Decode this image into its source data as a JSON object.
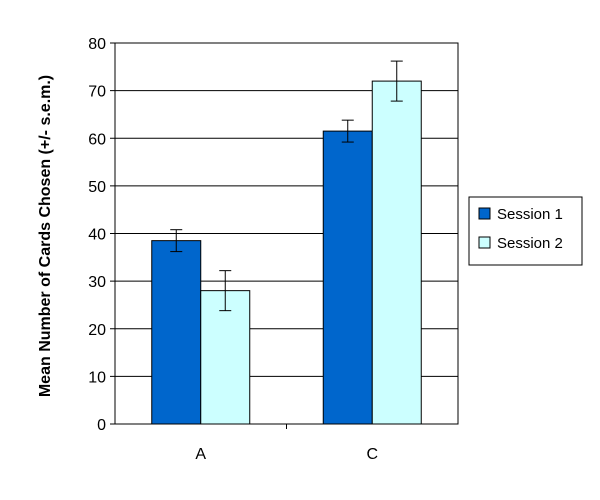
{
  "chart_data": {
    "type": "bar",
    "title": "",
    "xlabel": "",
    "ylabel": "Mean Number of Cards Chosen (+/- s.e.m.)",
    "ylim": [
      0,
      80
    ],
    "yticks": [
      0,
      10,
      20,
      30,
      40,
      50,
      60,
      70,
      80
    ],
    "categories": [
      "A",
      "C"
    ],
    "grid": "horizontal",
    "legend_position": "right",
    "series": [
      {
        "name": "Session 1",
        "color": "#0066CC",
        "values": [
          38.5,
          61.5
        ],
        "errors": [
          2.3,
          2.3
        ]
      },
      {
        "name": "Session 2",
        "color": "#CCFFFF",
        "values": [
          28,
          72
        ],
        "errors": [
          4.2,
          4.2
        ]
      }
    ]
  }
}
